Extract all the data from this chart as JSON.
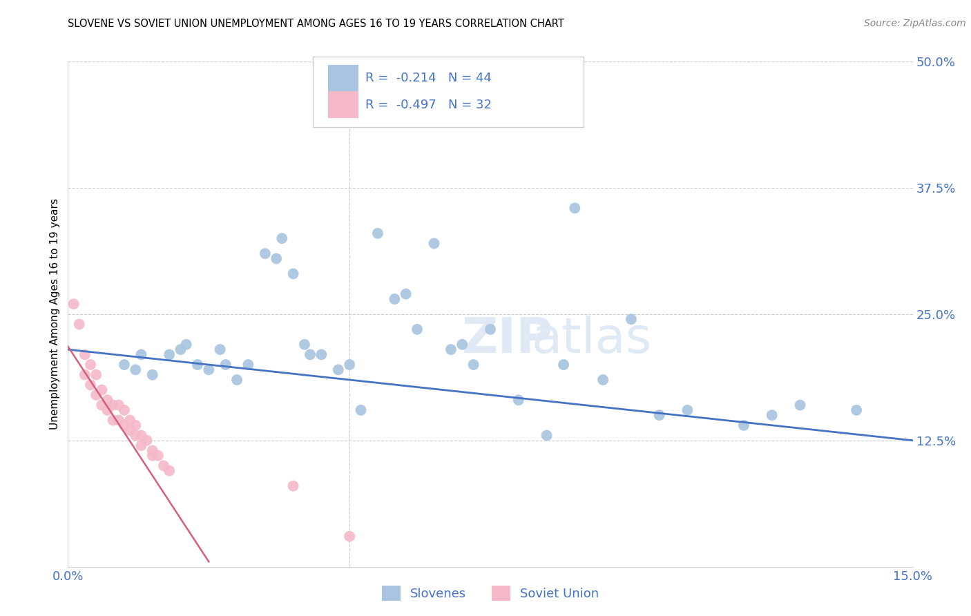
{
  "title": "SLOVENE VS SOVIET UNION UNEMPLOYMENT AMONG AGES 16 TO 19 YEARS CORRELATION CHART",
  "source": "Source: ZipAtlas.com",
  "ylabel": "Unemployment Among Ages 16 to 19 years",
  "xlim": [
    0.0,
    0.15
  ],
  "ylim": [
    0.0,
    0.5
  ],
  "xtick_labels": [
    "0.0%",
    "15.0%"
  ],
  "xtick_positions": [
    0.0,
    0.15
  ],
  "ytick_labels": [
    "12.5%",
    "25.0%",
    "37.5%",
    "50.0%"
  ],
  "ytick_positions": [
    0.125,
    0.25,
    0.375,
    0.5
  ],
  "slovene_color": "#a8c4e0",
  "soviet_color": "#f4b8c8",
  "slovene_line_color": "#4472c4",
  "soviet_line_color": "#d4607a",
  "slovene_R": -0.214,
  "slovene_N": 44,
  "soviet_R": -0.497,
  "soviet_N": 32,
  "slovene_x": [
    0.01,
    0.012,
    0.013,
    0.015,
    0.018,
    0.02,
    0.021,
    0.023,
    0.025,
    0.027,
    0.028,
    0.03,
    0.032,
    0.035,
    0.037,
    0.038,
    0.04,
    0.042,
    0.043,
    0.045,
    0.048,
    0.05,
    0.052,
    0.055,
    0.058,
    0.06,
    0.062,
    0.065,
    0.068,
    0.07,
    0.072,
    0.075,
    0.08,
    0.085,
    0.088,
    0.09,
    0.095,
    0.1,
    0.105,
    0.11,
    0.12,
    0.125,
    0.13,
    0.14
  ],
  "slovene_y": [
    0.2,
    0.195,
    0.21,
    0.19,
    0.21,
    0.215,
    0.22,
    0.2,
    0.195,
    0.215,
    0.2,
    0.185,
    0.2,
    0.31,
    0.305,
    0.325,
    0.29,
    0.22,
    0.21,
    0.21,
    0.195,
    0.2,
    0.155,
    0.33,
    0.265,
    0.27,
    0.235,
    0.32,
    0.215,
    0.22,
    0.2,
    0.235,
    0.165,
    0.13,
    0.2,
    0.355,
    0.185,
    0.245,
    0.15,
    0.155,
    0.14,
    0.15,
    0.16,
    0.155
  ],
  "soviet_x": [
    0.001,
    0.002,
    0.003,
    0.003,
    0.004,
    0.004,
    0.005,
    0.005,
    0.006,
    0.006,
    0.007,
    0.007,
    0.008,
    0.008,
    0.009,
    0.009,
    0.01,
    0.01,
    0.011,
    0.011,
    0.012,
    0.012,
    0.013,
    0.013,
    0.014,
    0.015,
    0.015,
    0.016,
    0.017,
    0.018,
    0.04,
    0.05
  ],
  "soviet_y": [
    0.26,
    0.24,
    0.21,
    0.19,
    0.2,
    0.18,
    0.19,
    0.17,
    0.175,
    0.16,
    0.165,
    0.155,
    0.16,
    0.145,
    0.16,
    0.145,
    0.155,
    0.14,
    0.145,
    0.135,
    0.14,
    0.13,
    0.13,
    0.12,
    0.125,
    0.115,
    0.11,
    0.11,
    0.1,
    0.095,
    0.08,
    0.03
  ],
  "background_color": "#ffffff",
  "grid_color": "#cccccc",
  "watermark": "ZIPatlas",
  "legend_box_color": "#f0f0f0",
  "title_fontsize": 10.5,
  "axis_label_fontsize": 11,
  "tick_fontsize": 13,
  "legend_fontsize": 13
}
